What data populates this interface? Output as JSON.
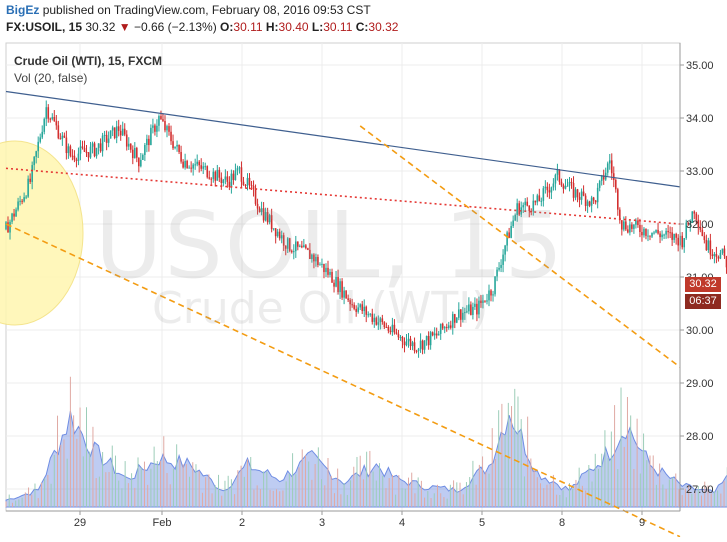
{
  "header": {
    "brand": "BigEz",
    "published": "published on TradingView.com, February 08, 2016 09:53 CST",
    "symbol": "FX:USOIL, 15",
    "last": "30.32",
    "change": "−0.66 (−2.13%)",
    "open_label": "O:",
    "open": "30.11",
    "high_label": "H:",
    "high": "30.40",
    "low_label": "L:",
    "low": "30.11",
    "close_label": "C:",
    "close": "30.32"
  },
  "legend": {
    "series": "Crude Oil (WTI), 15, FXCM",
    "volume": "Vol (20, false)"
  },
  "watermark": {
    "symbol": "USOIL, 15",
    "name": "Crude Oil (WTI)"
  },
  "price_tags": {
    "last_price": "30.32",
    "countdown": "06:37"
  },
  "colors": {
    "up": "#26a69a",
    "down": "#d32f2f",
    "trend_blue": "#3f5f8f",
    "trend_dotted_red": "#e53935",
    "trend_orange": "#f39c12",
    "volume": "#6f8de3",
    "ellipse_fill": "#fff6b0"
  },
  "chart_data": {
    "type": "candlestick",
    "y_axis": {
      "ticks": [
        "35.00",
        "34.00",
        "33.00",
        "32.00",
        "31.00",
        "30.00",
        "29.00",
        "28.00",
        "27.00"
      ],
      "range": [
        26.6,
        35.35
      ]
    },
    "x_axis": {
      "ticks": [
        "29",
        "Feb",
        "2",
        "3",
        "4",
        "5",
        "8",
        "9"
      ]
    },
    "price_path": [
      [
        0.0,
        31.9
      ],
      [
        0.3,
        32.8
      ],
      [
        0.5,
        34.2
      ],
      [
        0.8,
        33.3
      ],
      [
        1.1,
        33.4
      ],
      [
        1.4,
        33.8
      ],
      [
        1.65,
        33.2
      ],
      [
        1.9,
        34.0
      ],
      [
        2.2,
        33.2
      ],
      [
        2.5,
        33.0
      ],
      [
        2.75,
        32.8
      ],
      [
        2.9,
        33.0
      ],
      [
        3.2,
        32.2
      ],
      [
        3.5,
        31.6
      ],
      [
        3.8,
        31.4
      ],
      [
        4.05,
        31.0
      ],
      [
        4.3,
        30.5
      ],
      [
        4.6,
        30.2
      ],
      [
        4.85,
        29.9
      ],
      [
        5.1,
        29.7
      ],
      [
        5.35,
        29.9
      ],
      [
        5.6,
        30.3
      ],
      [
        5.85,
        30.4
      ],
      [
        6.05,
        30.8
      ],
      [
        6.2,
        31.6
      ],
      [
        6.35,
        32.3
      ],
      [
        6.6,
        32.4
      ],
      [
        6.85,
        32.9
      ],
      [
        7.05,
        32.6
      ],
      [
        7.3,
        32.4
      ],
      [
        7.5,
        33.2
      ],
      [
        7.65,
        32.0
      ],
      [
        7.9,
        31.9
      ],
      [
        8.15,
        31.8
      ],
      [
        8.4,
        31.7
      ],
      [
        8.55,
        32.3
      ],
      [
        8.7,
        31.6
      ],
      [
        8.9,
        31.4
      ],
      [
        9.1,
        30.9
      ],
      [
        9.35,
        31.0
      ],
      [
        9.55,
        30.9
      ],
      [
        9.75,
        31.2
      ],
      [
        9.85,
        30.6
      ],
      [
        10.0,
        30.0
      ],
      [
        10.1,
        30.3
      ]
    ],
    "volume_path": [
      [
        0.0,
        0.05
      ],
      [
        0.4,
        0.12
      ],
      [
        0.8,
        0.65
      ],
      [
        1.1,
        0.4
      ],
      [
        1.5,
        0.2
      ],
      [
        1.9,
        0.35
      ],
      [
        2.3,
        0.3
      ],
      [
        2.7,
        0.12
      ],
      [
        3.0,
        0.3
      ],
      [
        3.4,
        0.2
      ],
      [
        3.8,
        0.35
      ],
      [
        4.2,
        0.18
      ],
      [
        4.6,
        0.3
      ],
      [
        4.85,
        0.2
      ],
      [
        5.2,
        0.15
      ],
      [
        5.6,
        0.12
      ],
      [
        6.0,
        0.3
      ],
      [
        6.25,
        0.7
      ],
      [
        6.6,
        0.25
      ],
      [
        7.0,
        0.12
      ],
      [
        7.5,
        0.4
      ],
      [
        7.7,
        0.6
      ],
      [
        8.0,
        0.3
      ],
      [
        8.4,
        0.15
      ],
      [
        8.8,
        0.1
      ],
      [
        9.1,
        0.3
      ],
      [
        9.4,
        0.12
      ],
      [
        9.8,
        0.08
      ],
      [
        10.1,
        0.1
      ]
    ],
    "trendlines": [
      {
        "style": "solid-blue",
        "from": [
          0.0,
          34.5
        ],
        "to": [
          10.9,
          32.7
        ]
      },
      {
        "style": "dotted-red",
        "from": [
          0.0,
          33.05
        ],
        "to": [
          10.9,
          32.0
        ]
      },
      {
        "style": "dashed-orange-lower",
        "from": [
          0.0,
          32.0
        ],
        "to": [
          10.9,
          26.1
        ]
      },
      {
        "style": "dashed-orange-upper",
        "from": [
          4.4,
          33.85
        ],
        "to": [
          10.9,
          29.3
        ]
      }
    ]
  }
}
